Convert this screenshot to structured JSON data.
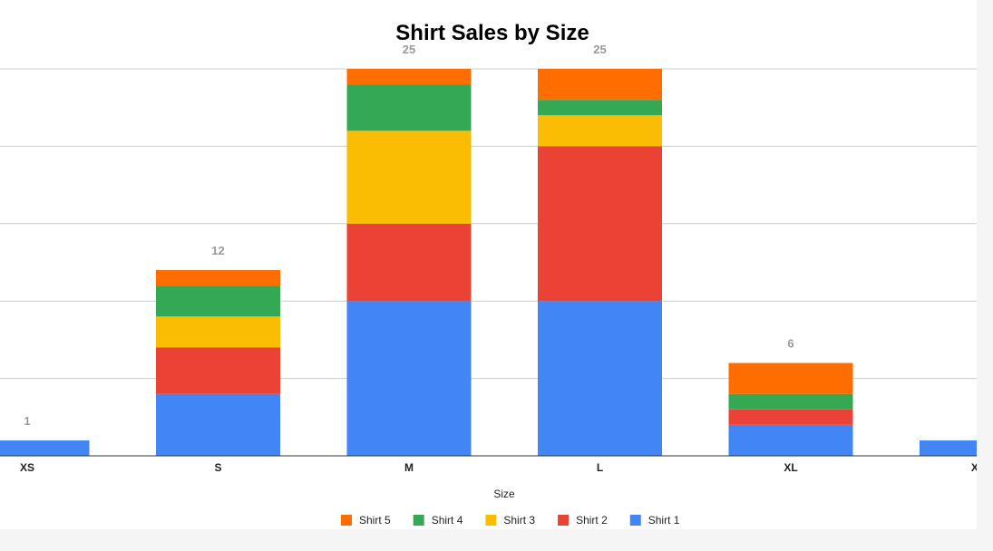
{
  "chart_data": {
    "type": "bar",
    "stacked": true,
    "title": "Shirt Sales by Size",
    "xlabel": "Size",
    "ylabel": "",
    "categories": [
      "XS",
      "S",
      "M",
      "L",
      "XL",
      "XXL"
    ],
    "totals": [
      1,
      12,
      25,
      25,
      6,
      1
    ],
    "ylim": [
      0,
      25
    ],
    "grid": true,
    "legend_position": "bottom",
    "series": [
      {
        "name": "Shirt 1",
        "color": "#4285F4",
        "values": [
          1,
          4,
          10,
          10,
          2,
          1
        ]
      },
      {
        "name": "Shirt 2",
        "color": "#EA4335",
        "values": [
          0,
          3,
          5,
          10,
          1,
          0
        ]
      },
      {
        "name": "Shirt 3",
        "color": "#FBBC04",
        "values": [
          0,
          2,
          6,
          2,
          0,
          0
        ]
      },
      {
        "name": "Shirt 4",
        "color": "#34A853",
        "values": [
          0,
          2,
          3,
          1,
          1,
          0
        ]
      },
      {
        "name": "Shirt 5",
        "color": "#FF6D01",
        "values": [
          0,
          1,
          1,
          2,
          2,
          0
        ]
      }
    ],
    "legend_order": [
      "Shirt 5",
      "Shirt 4",
      "Shirt 3",
      "Shirt 2",
      "Shirt 1"
    ]
  }
}
